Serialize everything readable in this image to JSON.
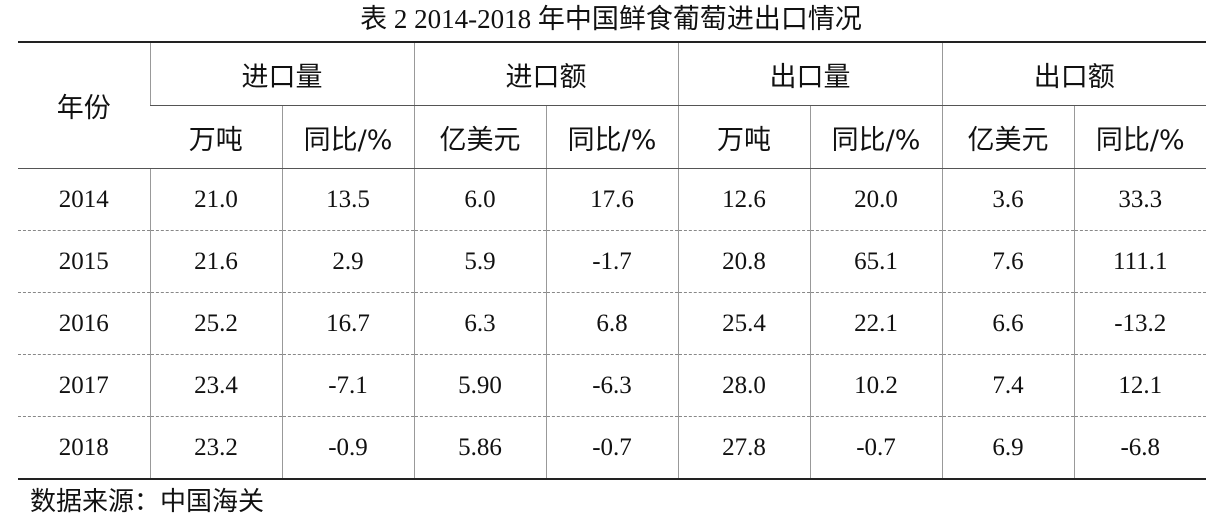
{
  "title": "表 2 2014-2018 年中国鲜食葡萄进出口情况",
  "table": {
    "row_header": "年份",
    "groups": [
      "进口量",
      "进口额",
      "出口量",
      "出口额"
    ],
    "units": [
      "万吨",
      "同比/%",
      "亿美元",
      "同比/%",
      "万吨",
      "同比/%",
      "亿美元",
      "同比/%"
    ],
    "rows": [
      [
        "2014",
        "21.0",
        "13.5",
        "6.0",
        "17.6",
        "12.6",
        "20.0",
        "3.6",
        "33.3"
      ],
      [
        "2015",
        "21.6",
        "2.9",
        "5.9",
        "-1.7",
        "20.8",
        "65.1",
        "7.6",
        "111.1"
      ],
      [
        "2016",
        "25.2",
        "16.7",
        "6.3",
        "6.8",
        "25.4",
        "22.1",
        "6.6",
        "-13.2"
      ],
      [
        "2017",
        "23.4",
        "-7.1",
        "5.90",
        "-6.3",
        "28.0",
        "10.2",
        "7.4",
        "12.1"
      ],
      [
        "2018",
        "23.2",
        "-0.9",
        "5.86",
        "-0.7",
        "27.8",
        "-0.7",
        "6.9",
        "-6.8"
      ]
    ]
  },
  "source": "数据来源：中国海关"
}
